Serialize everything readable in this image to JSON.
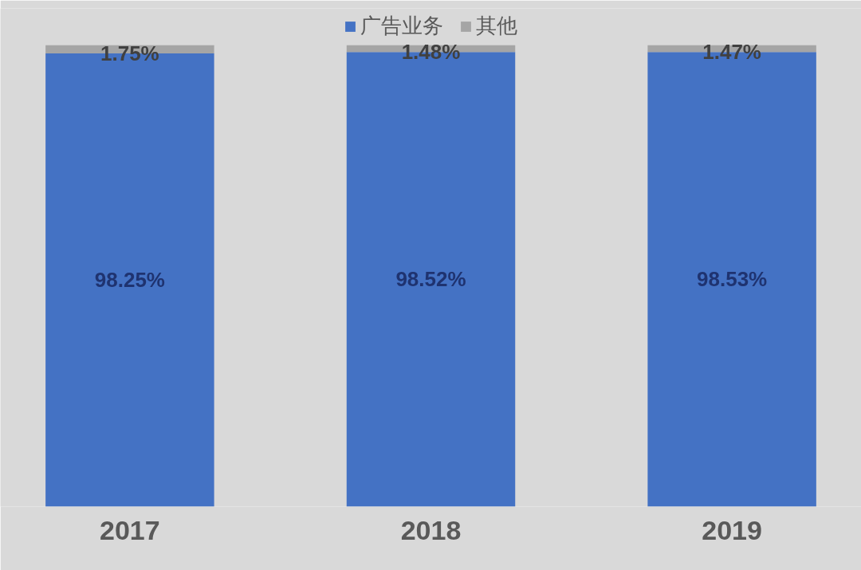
{
  "chart_data": {
    "type": "bar",
    "stacked": true,
    "legend": "top",
    "categories": [
      "2017",
      "2018",
      "2019"
    ],
    "series": [
      {
        "name": "广告业务",
        "color": "#4472c4",
        "values": [
          98.25,
          98.52,
          98.53
        ],
        "value_labels": [
          "98.25%",
          "98.52%",
          "98.53%"
        ]
      },
      {
        "name": "其他",
        "color": "#a5a5a5",
        "values": [
          1.75,
          1.48,
          1.47
        ],
        "value_labels": [
          "1.75%",
          "1.48%",
          "1.47%"
        ]
      }
    ]
  }
}
